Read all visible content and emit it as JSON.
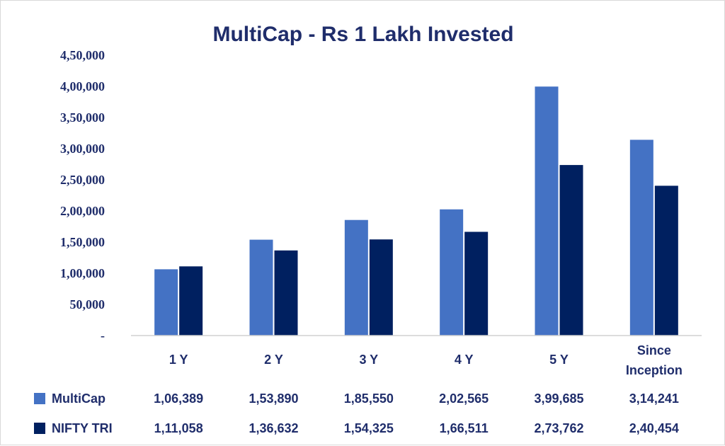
{
  "chart_data": {
    "type": "bar",
    "title": "MultiCap - Rs 1 Lakh Invested",
    "categories": [
      [
        "1 Y"
      ],
      [
        "2 Y"
      ],
      [
        "3 Y"
      ],
      [
        "4 Y"
      ],
      [
        "5 Y"
      ],
      [
        "Since",
        "Inception"
      ]
    ],
    "series": [
      {
        "name": "MultiCap",
        "color": "#4472c4",
        "values": [
          106389,
          153890,
          185550,
          202565,
          399685,
          314241
        ],
        "labels": [
          "1,06,389",
          "1,53,890",
          "1,85,550",
          "2,02,565",
          "3,99,685",
          "3,14,241"
        ]
      },
      {
        "name": "NIFTY TRI",
        "color": "#002060",
        "values": [
          111058,
          136632,
          154325,
          166511,
          273762,
          240454
        ],
        "labels": [
          "1,11,058",
          "1,36,632",
          "1,54,325",
          "1,66,511",
          "2,73,762",
          "2,40,454"
        ]
      }
    ],
    "ylim": [
      0,
      450000
    ],
    "yticks": [
      {
        "value": 0,
        "label": "-"
      },
      {
        "value": 50000,
        "label": "50,000"
      },
      {
        "value": 100000,
        "label": "1,00,000"
      },
      {
        "value": 150000,
        "label": "1,50,000"
      },
      {
        "value": 200000,
        "label": "2,00,000"
      },
      {
        "value": 250000,
        "label": "2,50,000"
      },
      {
        "value": 300000,
        "label": "3,00,000"
      },
      {
        "value": 350000,
        "label": "3,50,000"
      },
      {
        "value": 400000,
        "label": "4,00,000"
      },
      {
        "value": 450000,
        "label": "4,50,000"
      }
    ],
    "grid": false,
    "legend": "data-table-below"
  }
}
